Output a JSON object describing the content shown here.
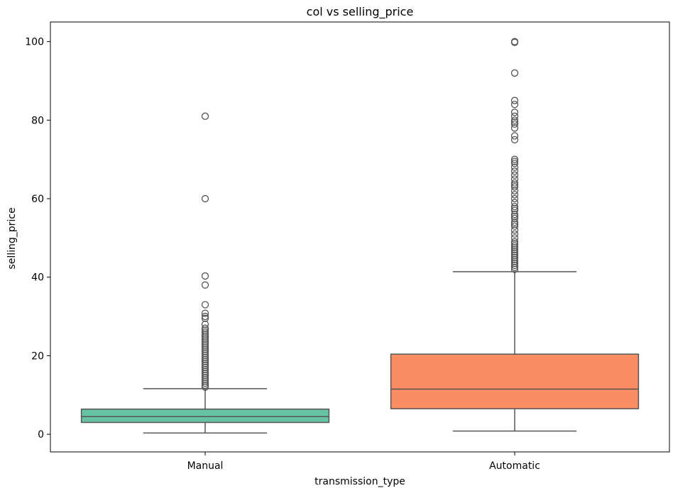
{
  "chart_data": {
    "type": "box",
    "title": "col vs selling_price",
    "xlabel": "transmission_type",
    "ylabel": "selling_price",
    "categories": [
      "Manual",
      "Automatic"
    ],
    "ylim": [
      -4.5,
      105
    ],
    "yticks": [
      0,
      20,
      40,
      60,
      80,
      100
    ],
    "grid": false,
    "boxes": [
      {
        "category": "Manual",
        "color": "#66c2a5",
        "whisker_low": 0.3,
        "q1": 3.0,
        "median": 4.5,
        "q3": 6.4,
        "whisker_high": 11.6,
        "outliers": [
          81,
          60,
          40.3,
          38,
          33,
          30.8,
          30,
          29.5,
          28,
          27,
          26.5,
          26,
          25.5,
          25,
          24.5,
          24,
          23.5,
          23,
          22.5,
          22,
          21.5,
          21,
          20.5,
          20,
          19.5,
          19,
          18.5,
          18,
          17.5,
          17,
          16.5,
          16,
          15.5,
          15,
          14.5,
          14,
          13.5,
          13,
          12.5,
          12
        ]
      },
      {
        "category": "Automatic",
        "color": "#fc8d62",
        "whisker_low": 0.8,
        "q1": 6.5,
        "median": 11.5,
        "q3": 20.4,
        "whisker_high": 41.4,
        "outliers": [
          100,
          99.8,
          92,
          85,
          84,
          82,
          81,
          80,
          79.5,
          79,
          78,
          76,
          75,
          70,
          69.5,
          69,
          68,
          67,
          66,
          65,
          64,
          63.5,
          63,
          62,
          61,
          60,
          59,
          58,
          57.5,
          57,
          56,
          55.5,
          55,
          54,
          53.5,
          53,
          52,
          51,
          50,
          49,
          48.5,
          48,
          47.5,
          47,
          46.5,
          46,
          45.5,
          45,
          44.5,
          44,
          43.5,
          43,
          42.5,
          42
        ]
      }
    ]
  }
}
